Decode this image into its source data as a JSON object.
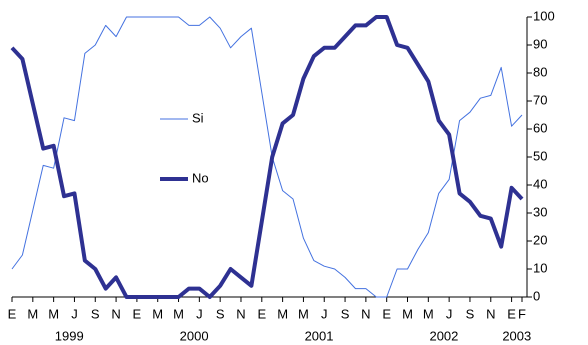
{
  "chart_data": {
    "type": "line",
    "categories": [
      "E",
      null,
      "M",
      null,
      "M",
      null,
      "J",
      null,
      "S",
      null,
      "N",
      null,
      "E",
      null,
      "M",
      null,
      "M",
      null,
      "J",
      null,
      "S",
      null,
      "N",
      null,
      "E",
      null,
      "M",
      null,
      "M",
      null,
      "J",
      null,
      "S",
      null,
      "N",
      null,
      "E",
      null,
      "M",
      null,
      "M",
      null,
      "J",
      null,
      "S",
      null,
      "N",
      null,
      "E",
      "F"
    ],
    "years": [
      "1999",
      "2000",
      "2001",
      "2002",
      "2003"
    ],
    "series": [
      {
        "name": "Si",
        "color": "#4472e0",
        "width": 1,
        "values": [
          10,
          15,
          31,
          47,
          46,
          64,
          63,
          87,
          90,
          97,
          93,
          100,
          100,
          100,
          100,
          100,
          100,
          97,
          97,
          100,
          96,
          89,
          93,
          96,
          73,
          50,
          38,
          35,
          21,
          13,
          11,
          10,
          7,
          3,
          3,
          0,
          0,
          10,
          10,
          17,
          23,
          37,
          42,
          63,
          66,
          71,
          72,
          82,
          61,
          65
        ]
      },
      {
        "name": "No",
        "color": "#2e3192",
        "width": 4,
        "values": [
          89,
          85,
          69,
          53,
          54,
          36,
          37,
          13,
          10,
          3,
          7,
          0,
          0,
          0,
          0,
          0,
          0,
          3,
          3,
          0,
          4,
          10,
          7,
          4,
          27,
          50,
          62,
          65,
          78,
          86,
          89,
          89,
          93,
          97,
          97,
          100,
          100,
          90,
          89,
          83,
          77,
          63,
          58,
          37,
          34,
          29,
          28,
          18,
          39,
          35
        ]
      }
    ],
    "ylim": [
      0,
      100
    ],
    "yticks": [
      0,
      10,
      20,
      30,
      40,
      50,
      60,
      70,
      80,
      90,
      100
    ],
    "grid": false
  }
}
